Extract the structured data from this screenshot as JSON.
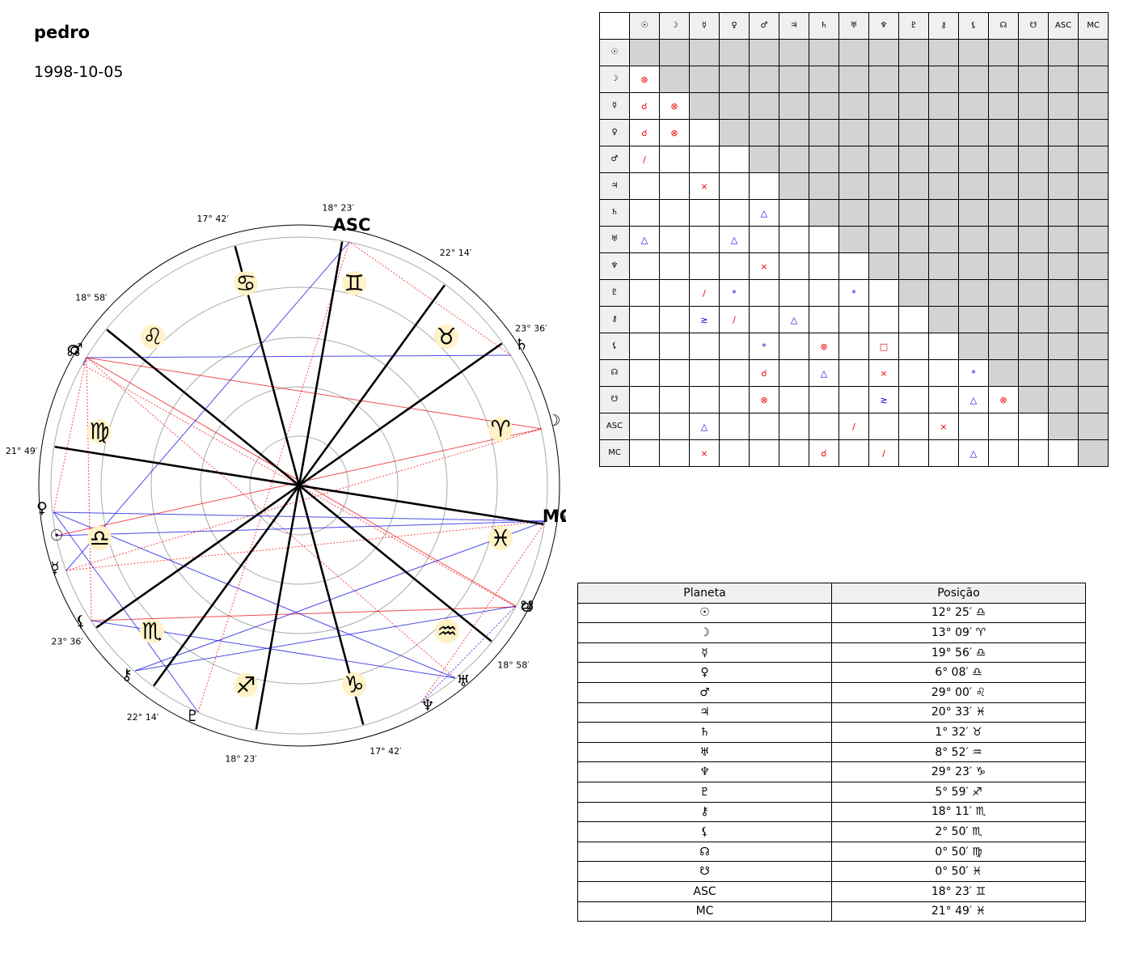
{
  "header": {
    "name": "pedro",
    "date": "1998-10-05"
  },
  "wheel": {
    "asc_label": "ASC",
    "mc_label": "MC",
    "cusp_labels": [
      "18° 23′",
      "22° 14′",
      "23° 36′",
      "21° 49′",
      "18° 58′",
      "17° 42′",
      "18° 23′",
      "22° 14′",
      "23° 36′",
      "21° 49′",
      "18° 58′",
      "17° 42′"
    ],
    "signs": [
      {
        "glyph": "♈",
        "name": "aries"
      },
      {
        "glyph": "♉",
        "name": "taurus"
      },
      {
        "glyph": "♊",
        "name": "gemini"
      },
      {
        "glyph": "♋",
        "name": "cancer"
      },
      {
        "glyph": "♌",
        "name": "leo"
      },
      {
        "glyph": "♍",
        "name": "virgo"
      },
      {
        "glyph": "♎",
        "name": "libra"
      },
      {
        "glyph": "♏",
        "name": "scorpio"
      },
      {
        "glyph": "♐",
        "name": "sagittarius"
      },
      {
        "glyph": "♑",
        "name": "capricorn"
      },
      {
        "glyph": "♒",
        "name": "aquarius"
      },
      {
        "glyph": "♓",
        "name": "pisces"
      }
    ],
    "planets": [
      {
        "glyph": "☉",
        "name": "sun"
      },
      {
        "glyph": "☽",
        "name": "moon"
      },
      {
        "glyph": "☿",
        "name": "mercury"
      },
      {
        "glyph": "♀",
        "name": "venus"
      },
      {
        "glyph": "♂",
        "name": "mars"
      },
      {
        "glyph": "♃",
        "name": "jupiter"
      },
      {
        "glyph": "♄",
        "name": "saturn"
      },
      {
        "glyph": "♅",
        "name": "uranus"
      },
      {
        "glyph": "♆",
        "name": "neptune"
      },
      {
        "glyph": "♇",
        "name": "pluto"
      },
      {
        "glyph": "⚷",
        "name": "chiron"
      },
      {
        "glyph": "⚸",
        "name": "lilith"
      },
      {
        "glyph": "☊",
        "name": "north-node"
      },
      {
        "glyph": "☋",
        "name": "south-node"
      }
    ],
    "aspect_lines": [
      {
        "a": "lilith",
        "b": "jupiter",
        "color": "#e00",
        "style": "solid"
      },
      {
        "a": "lilith",
        "b": "mars",
        "color": "#e00",
        "style": "dotted"
      },
      {
        "a": "neptune",
        "b": "mc",
        "color": "#e00",
        "style": "dotted"
      },
      {
        "a": "mars",
        "b": "saturn",
        "color": "#00d",
        "style": "solid"
      },
      {
        "a": "mars",
        "b": "north-node",
        "color": "#00d",
        "style": "solid"
      },
      {
        "a": "mars",
        "b": "moon",
        "color": "#e00",
        "style": "solid"
      },
      {
        "a": "mars",
        "b": "south-node",
        "color": "#e00",
        "style": "solid"
      },
      {
        "a": "mars",
        "b": "venus",
        "color": "#e00",
        "style": "dotted"
      },
      {
        "a": "mars",
        "b": "uranus",
        "color": "#e00",
        "style": "dotted"
      },
      {
        "a": "mercury",
        "b": "asc",
        "color": "#00d",
        "style": "solid"
      },
      {
        "a": "mercury",
        "b": "mc",
        "color": "#e00",
        "style": "dotted"
      },
      {
        "a": "venus",
        "b": "uranus",
        "color": "#00d",
        "style": "solid"
      },
      {
        "a": "venus",
        "b": "pluto",
        "color": "#00d",
        "style": "solid"
      },
      {
        "a": "sun",
        "b": "moon",
        "color": "#e00",
        "style": "solid"
      },
      {
        "a": "sun",
        "b": "mc",
        "color": "#00d",
        "style": "solid"
      },
      {
        "a": "chiron",
        "b": "mc",
        "color": "#00d",
        "style": "solid"
      },
      {
        "a": "chiron",
        "b": "south-node",
        "color": "#00d",
        "style": "solid"
      },
      {
        "a": "lilith",
        "b": "uranus",
        "color": "#00d",
        "style": "solid"
      },
      {
        "a": "mercury",
        "b": "moon",
        "color": "#e00",
        "style": "dotted"
      },
      {
        "a": "saturn",
        "b": "asc",
        "color": "#e00",
        "style": "dotted"
      },
      {
        "a": "asc",
        "b": "pluto",
        "color": "#e00",
        "style": "dotted"
      },
      {
        "a": "north-node",
        "b": "jupiter",
        "color": "#e00",
        "style": "dotted"
      },
      {
        "a": "neptune",
        "b": "south-node",
        "color": "#00d",
        "style": "dotted"
      },
      {
        "a": "venus",
        "b": "mc",
        "color": "#00d",
        "style": "solid"
      }
    ]
  },
  "aspect_grid": {
    "headers": [
      "☉",
      "☽",
      "☿",
      "♀",
      "♂",
      "♃",
      "♄",
      "♅",
      "♆",
      "♇",
      "⚷",
      "⚸",
      "☊",
      "☋",
      "ASC",
      "MC"
    ],
    "cells": [
      [],
      [
        {
          "c": 0,
          "s": "⊗",
          "col": "red"
        }
      ],
      [
        {
          "c": 0,
          "s": "☌",
          "col": "red"
        },
        {
          "c": 1,
          "s": "⊗",
          "col": "red"
        }
      ],
      [
        {
          "c": 0,
          "s": "☌",
          "col": "red"
        },
        {
          "c": 1,
          "s": "⊗",
          "col": "red"
        }
      ],
      [
        {
          "c": 0,
          "s": "/",
          "col": "red"
        }
      ],
      [
        {
          "c": 2,
          "s": "×",
          "col": "red"
        }
      ],
      [
        {
          "c": 4,
          "s": "△",
          "col": "blue"
        }
      ],
      [
        {
          "c": 0,
          "s": "△",
          "col": "blue"
        },
        {
          "c": 3,
          "s": "△",
          "col": "blue"
        }
      ],
      [
        {
          "c": 4,
          "s": "×",
          "col": "red"
        }
      ],
      [
        {
          "c": 2,
          "s": "/",
          "col": "red"
        },
        {
          "c": 3,
          "s": "*",
          "col": "blue"
        },
        {
          "c": 7,
          "s": "*",
          "col": "blue"
        }
      ],
      [
        {
          "c": 2,
          "s": "≳",
          "col": "blue"
        },
        {
          "c": 3,
          "s": "/",
          "col": "red"
        },
        {
          "c": 5,
          "s": "△",
          "col": "blue"
        }
      ],
      [
        {
          "c": 4,
          "s": "*",
          "col": "blue"
        },
        {
          "c": 6,
          "s": "⊗",
          "col": "red"
        },
        {
          "c": 8,
          "s": "□",
          "col": "red"
        }
      ],
      [
        {
          "c": 4,
          "s": "☌",
          "col": "red"
        },
        {
          "c": 6,
          "s": "△",
          "col": "blue"
        },
        {
          "c": 8,
          "s": "×",
          "col": "red"
        },
        {
          "c": 11,
          "s": "*",
          "col": "blue"
        }
      ],
      [
        {
          "c": 4,
          "s": "⊗",
          "col": "red"
        },
        {
          "c": 8,
          "s": "≳",
          "col": "blue"
        },
        {
          "c": 11,
          "s": "△",
          "col": "blue"
        },
        {
          "c": 12,
          "s": "⊗",
          "col": "red"
        }
      ],
      [
        {
          "c": 2,
          "s": "△",
          "col": "blue"
        },
        {
          "c": 7,
          "s": "/",
          "col": "red"
        },
        {
          "c": 10,
          "s": "×",
          "col": "red"
        }
      ],
      [
        {
          "c": 2,
          "s": "×",
          "col": "red"
        },
        {
          "c": 6,
          "s": "☌",
          "col": "red"
        },
        {
          "c": 8,
          "s": "/",
          "col": "red"
        },
        {
          "c": 11,
          "s": "△",
          "col": "blue"
        }
      ]
    ]
  },
  "positions": {
    "col_planet": "Planeta",
    "col_position": "Posição",
    "rows": [
      {
        "planet": "☉",
        "pos": "12° 25′ ♎"
      },
      {
        "planet": "☽",
        "pos": "13° 09′ ♈"
      },
      {
        "planet": "☿",
        "pos": "19° 56′ ♎"
      },
      {
        "planet": "♀",
        "pos": "6° 08′ ♎"
      },
      {
        "planet": "♂",
        "pos": "29° 00′ ♌"
      },
      {
        "planet": "♃",
        "pos": "20° 33′ ♓"
      },
      {
        "planet": "♄",
        "pos": "1° 32′ ♉"
      },
      {
        "planet": "♅",
        "pos": "8° 52′ ♒"
      },
      {
        "planet": "♆",
        "pos": "29° 23′ ♑"
      },
      {
        "planet": "♇",
        "pos": "5° 59′ ♐"
      },
      {
        "planet": "⚷",
        "pos": "18° 11′ ♏"
      },
      {
        "planet": "⚸",
        "pos": "2° 50′ ♏"
      },
      {
        "planet": "☊",
        "pos": "0° 50′ ♍"
      },
      {
        "planet": "☋",
        "pos": "0° 50′ ♓"
      },
      {
        "planet": "ASC",
        "pos": "18° 23′ ♊"
      },
      {
        "planet": "MC",
        "pos": "21° 49′ ♓"
      }
    ]
  }
}
